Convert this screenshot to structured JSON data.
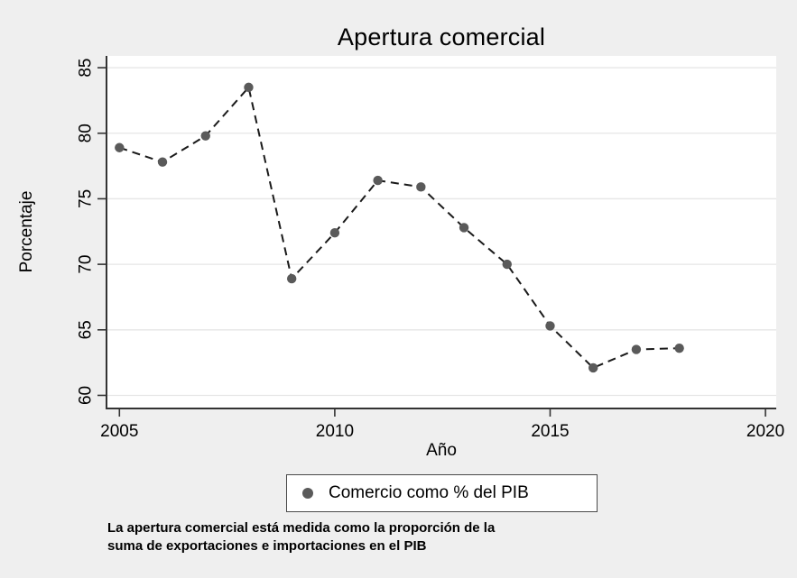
{
  "title": "Apertura comercial",
  "chart_data": {
    "type": "line",
    "title": "Apertura comercial",
    "xlabel": "Año",
    "ylabel": "Porcentaje",
    "x": [
      2005,
      2006,
      2007,
      2008,
      2009,
      2010,
      2011,
      2012,
      2013,
      2014,
      2015,
      2016,
      2017,
      2018
    ],
    "series": [
      {
        "name": "Comercio como % del PIB",
        "values": [
          78.9,
          77.8,
          79.8,
          83.5,
          68.9,
          72.4,
          76.4,
          75.9,
          72.8,
          70.0,
          65.3,
          62.1,
          63.5,
          63.6
        ],
        "line_style": "dashed",
        "marker": "circle"
      }
    ],
    "xlim": [
      2004.7,
      2020.25
    ],
    "ylim": [
      59.0,
      85.9
    ],
    "xticks": [
      2005,
      2010,
      2015,
      2020
    ],
    "yticks": [
      60,
      65,
      70,
      75,
      80,
      85
    ],
    "ytick_label_angle": -90,
    "grid": "horizontal",
    "legend_position": "below-plot-center"
  },
  "legend": {
    "marker": "circle-icon",
    "label": "Comercio como % del PIB"
  },
  "footnote": {
    "line1": "La apertura comercial está medida como la proporción de la",
    "line2": "suma de exportaciones e importaciones en el PIB"
  },
  "colors": {
    "page_background": "#efefef",
    "plot_background": "#ffffff",
    "grid": "#e6e6e6",
    "axis": "#333333",
    "line": "#1a1a1a",
    "marker": "#5a5a5a",
    "text": "#000000",
    "legend_border": "#4a4a4a"
  }
}
